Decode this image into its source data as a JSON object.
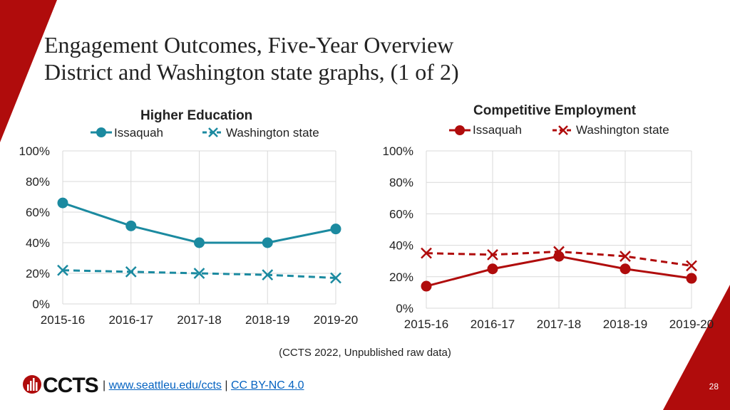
{
  "slide": {
    "title_line1": "Engagement Outcomes, Five-Year Overview",
    "title_line2": "District and Washington state graphs, (1 of 2)",
    "source": "(CCTS 2022, Unpublished raw data)",
    "logo_text": "CCTS",
    "footer_sep1": "|",
    "footer_link1": "www.seattleu.edu/ccts",
    "footer_sep2": "|",
    "footer_link2": "CC BY-NC 4.0",
    "page_number": "28"
  },
  "colors": {
    "brand_red": "#b00c0c",
    "teal": "#1b8aa0",
    "dark_red": "#b00c0c",
    "grid": "#d9d9d9"
  },
  "chart_data": [
    {
      "type": "line",
      "title": "Higher Education",
      "categories": [
        "2015-16",
        "2016-17",
        "2017-18",
        "2018-19",
        "2019-20"
      ],
      "y_tick_labels": [
        "100%",
        "80%",
        "60%",
        "40%",
        "20%",
        "0%"
      ],
      "ylim": [
        0,
        100
      ],
      "xlabel": "",
      "ylabel": "",
      "series": [
        {
          "name": "Issaquah",
          "values": [
            66,
            51,
            40,
            40,
            49
          ],
          "style": "solid-circle"
        },
        {
          "name": "Washington state",
          "values": [
            22,
            21,
            20,
            19,
            17
          ],
          "style": "dashed-x"
        }
      ]
    },
    {
      "type": "line",
      "title": "Competitive Employment",
      "categories": [
        "2015-16",
        "2016-17",
        "2017-18",
        "2018-19",
        "2019-20"
      ],
      "y_tick_labels": [
        "100%",
        "80%",
        "60%",
        "40%",
        "20%",
        "0%"
      ],
      "ylim": [
        0,
        100
      ],
      "xlabel": "",
      "ylabel": "",
      "series": [
        {
          "name": "Issaquah",
          "values": [
            14,
            25,
            33,
            25,
            19
          ],
          "style": "solid-circle"
        },
        {
          "name": "Washington state",
          "values": [
            35,
            34,
            36,
            33,
            27
          ],
          "style": "dashed-x"
        }
      ]
    }
  ]
}
